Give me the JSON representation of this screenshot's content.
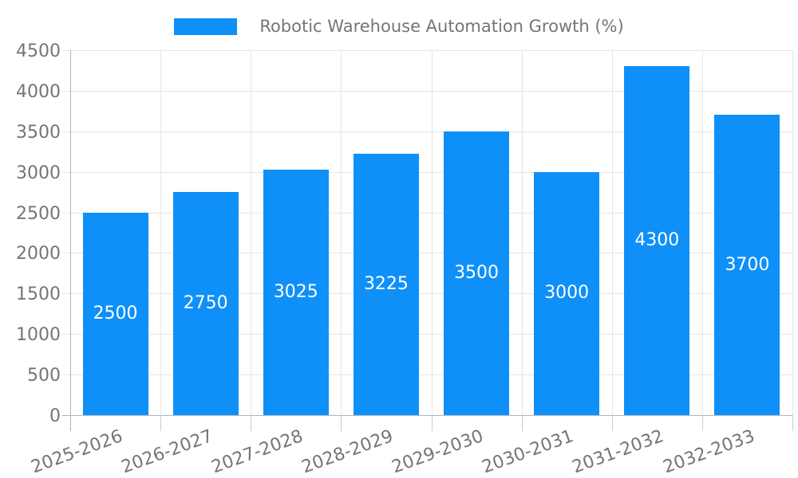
{
  "legend": {
    "label": "Robotic Warehouse Automation Growth (%)"
  },
  "chart_data": {
    "type": "bar",
    "title": "Robotic Warehouse Automation Growth (%)",
    "series_name": "Robotic Warehouse Automation Growth (%)",
    "categories": [
      "2025-2026",
      "2026-2027",
      "2027-2028",
      "2028-2029",
      "2029-2030",
      "2030-2031",
      "2031-2032",
      "2032-2033"
    ],
    "values": [
      2500,
      2750,
      3025,
      3225,
      3500,
      3000,
      4300,
      3700
    ],
    "value_labels_shown": true,
    "xlabel": "",
    "ylabel": "",
    "ylim": [
      0,
      4500
    ],
    "yticks": [
      0,
      500,
      1000,
      1500,
      2000,
      2500,
      3000,
      3500,
      4000,
      4500
    ],
    "grid": true,
    "legend_position": "top-center",
    "x_tick_rotation_deg": -20,
    "colors": {
      "bar": "#0f90f8",
      "value_label": "#ffffff",
      "axis_text": "#757575",
      "grid_line": "#e6e6e6",
      "axis_line": "#b3b3b3",
      "tick_stub": "#cccccc",
      "background": "#ffffff"
    }
  }
}
